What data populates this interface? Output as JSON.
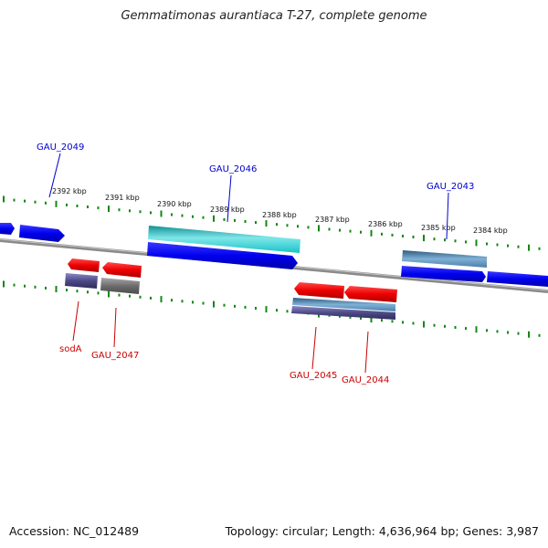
{
  "title": "Gemmatimonas aurantiaca T-27, complete genome",
  "footer": {
    "accession": "Accession: NC_012489",
    "stats": "Topology: circular; Length: 4,636,964 bp; Genes: 3,987"
  },
  "colors": {
    "forward_gene": "#0000ee",
    "reverse_gene": "#ee0000",
    "forward_label": "#0000cc",
    "reverse_label": "#cc0000",
    "rna_cyan": "#19c3c8",
    "steel_blue": "#4a7ea8",
    "slate_purple": "#4d4a86",
    "pseudo_gray": "#6d6d6d",
    "backbone": "#8a8a8a",
    "tick": "#118811"
  },
  "scale_labels": [
    "2392 kbp",
    "2391 kbp",
    "2390 kbp",
    "2389 kbp",
    "2388 kbp",
    "2387 kbp",
    "2386 kbp",
    "2385 kbp",
    "2384 kbp"
  ],
  "gene_labels_forward": [
    "GAU_2049",
    "GAU_2046",
    "GAU_2043"
  ],
  "gene_labels_reverse": [
    "sodA",
    "GAU_2047",
    "GAU_2045",
    "GAU_2044"
  ]
}
